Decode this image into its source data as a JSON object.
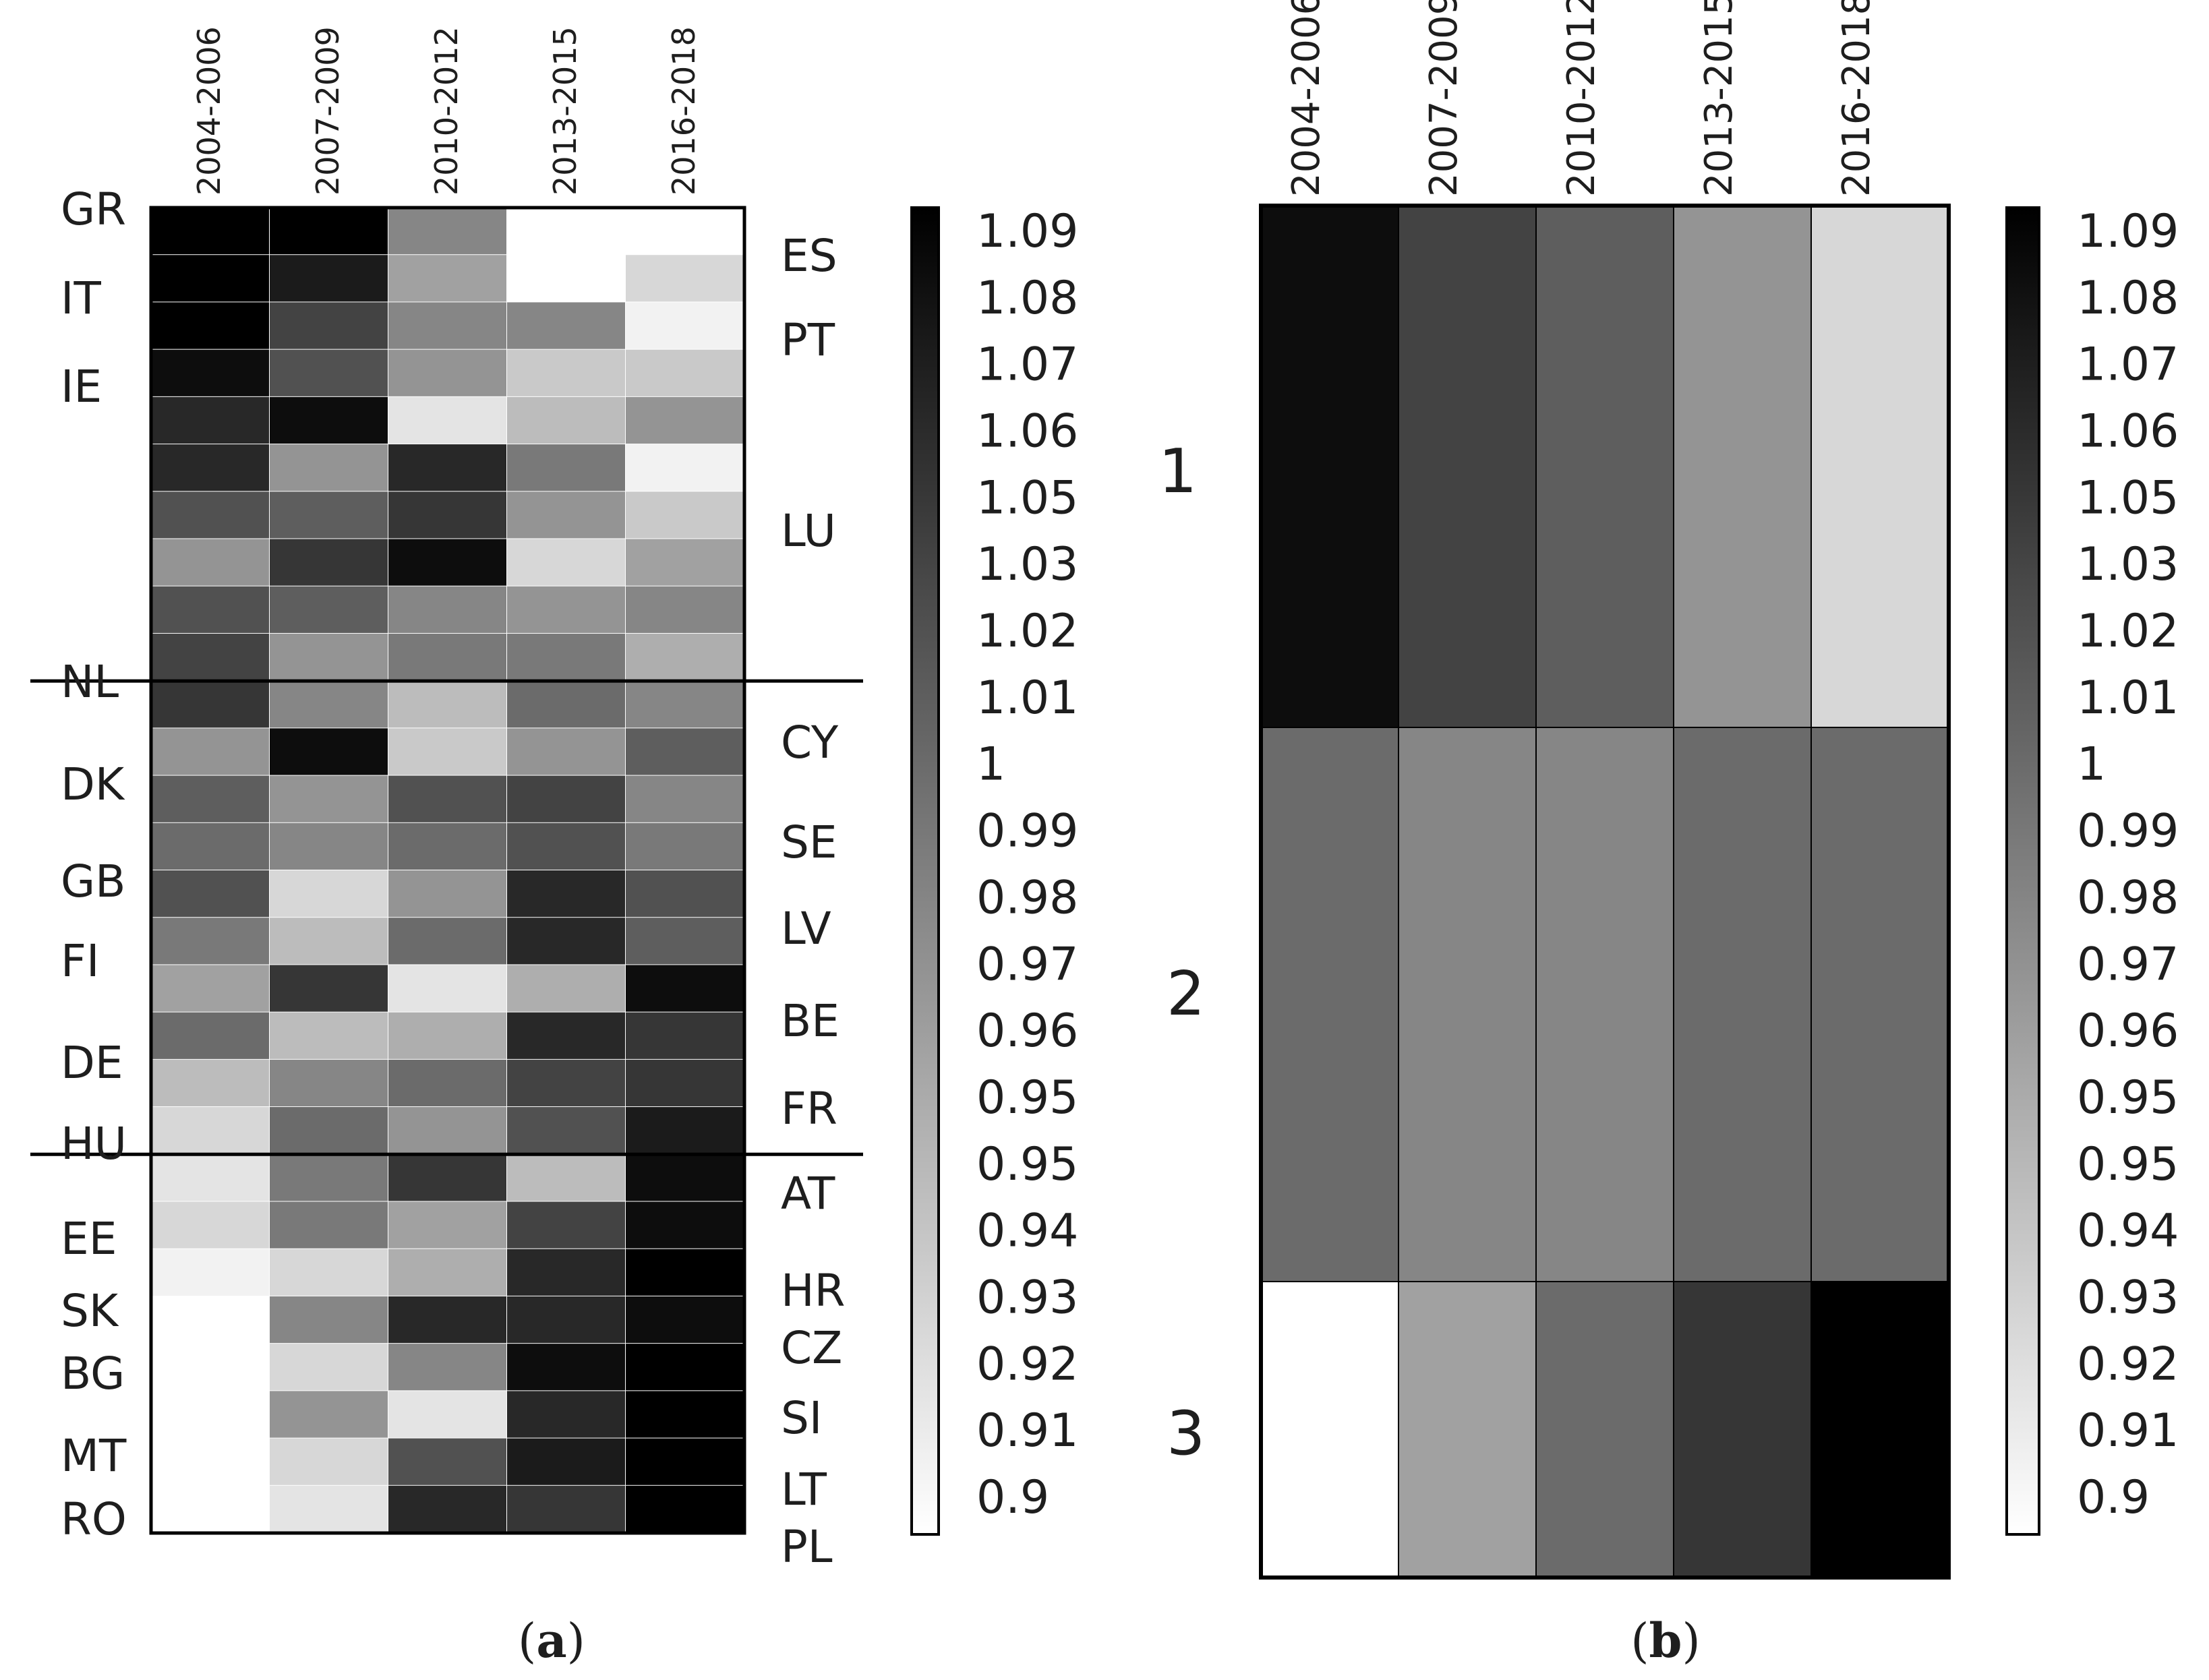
{
  "chart_data": [
    {
      "type": "heatmap",
      "panel": "a",
      "caption_open": "(",
      "caption_letter": "a",
      "caption_close": ")",
      "columns": [
        "2004-2006",
        "2007-2009",
        "2010-2012",
        "2013-2015",
        "2016-2018"
      ],
      "left_labels": [
        "GR",
        "IT",
        "IE",
        "NL",
        "DK",
        "GB",
        "FI",
        "DE",
        "HU",
        "EE",
        "SK",
        "BG",
        "MT",
        "RO"
      ],
      "right_labels": [
        "ES",
        "PT",
        "LU",
        "CY",
        "SE",
        "LV",
        "BE",
        "FR",
        "AT",
        "HR",
        "CZ",
        "SI",
        "LT",
        "PL"
      ],
      "rows": [
        {
          "values": [
            1.09,
            1.09,
            0.99,
            0.9,
            0.9
          ]
        },
        {
          "values": [
            1.09,
            1.07,
            0.97,
            0.9,
            0.93
          ]
        },
        {
          "values": [
            1.09,
            1.04,
            0.99,
            0.99,
            0.91
          ]
        },
        {
          "values": [
            1.08,
            1.03,
            0.98,
            0.94,
            0.94
          ]
        },
        {
          "values": [
            1.06,
            1.08,
            0.92,
            0.95,
            0.98
          ]
        },
        {
          "values": [
            1.06,
            0.98,
            1.06,
            1.0,
            0.91
          ]
        },
        {
          "values": [
            1.03,
            1.02,
            1.05,
            0.98,
            0.94
          ]
        },
        {
          "values": [
            0.98,
            1.05,
            1.08,
            0.93,
            0.97
          ]
        },
        {
          "values": [
            1.03,
            1.02,
            0.99,
            0.98,
            0.99
          ]
        },
        {
          "values": [
            1.04,
            0.98,
            1.0,
            1.0,
            0.96
          ]
        },
        {
          "values": [
            1.05,
            0.99,
            0.95,
            1.01,
            0.99
          ]
        },
        {
          "values": [
            0.98,
            1.08,
            0.94,
            0.98,
            1.02
          ]
        },
        {
          "values": [
            1.02,
            0.98,
            1.03,
            1.04,
            0.99
          ]
        },
        {
          "values": [
            1.01,
            0.99,
            1.01,
            1.03,
            1.0
          ]
        },
        {
          "values": [
            1.03,
            0.93,
            0.98,
            1.06,
            1.03
          ]
        },
        {
          "values": [
            1.0,
            0.95,
            1.01,
            1.06,
            1.02
          ]
        },
        {
          "values": [
            0.97,
            1.05,
            0.92,
            0.96,
            1.08
          ]
        },
        {
          "values": [
            1.01,
            0.95,
            0.96,
            1.06,
            1.05
          ]
        },
        {
          "values": [
            0.95,
            0.99,
            1.01,
            1.04,
            1.05
          ]
        },
        {
          "values": [
            0.93,
            1.01,
            0.98,
            1.03,
            1.07
          ]
        },
        {
          "values": [
            0.92,
            1.0,
            1.05,
            0.95,
            1.08
          ]
        },
        {
          "values": [
            0.93,
            1.0,
            0.97,
            1.04,
            1.08
          ]
        },
        {
          "values": [
            0.91,
            0.93,
            0.96,
            1.06,
            1.09
          ]
        },
        {
          "values": [
            0.9,
            0.99,
            1.06,
            1.06,
            1.08
          ]
        },
        {
          "values": [
            0.9,
            0.93,
            0.99,
            1.08,
            1.09
          ]
        },
        {
          "values": [
            0.9,
            0.98,
            0.92,
            1.06,
            1.09
          ]
        },
        {
          "values": [
            0.9,
            0.93,
            1.03,
            1.07,
            1.09
          ]
        },
        {
          "values": [
            0.9,
            0.92,
            1.06,
            1.05,
            1.09
          ]
        }
      ],
      "group_separators_after_row": [
        10,
        20
      ],
      "colorbar": {
        "min": 0.9,
        "max": 1.09,
        "tick_labels": [
          "1.09",
          "1.08",
          "1.07",
          "1.06",
          "1.05",
          "1.03",
          "1.02",
          "1.01",
          "1",
          "0.99",
          "0.98",
          "0.97",
          "0.96",
          "0.95",
          "0.95",
          "0.94",
          "0.93",
          "0.92",
          "0.91",
          "0.9"
        ]
      }
    },
    {
      "type": "heatmap",
      "panel": "b",
      "caption_open": "(",
      "caption_letter": "b",
      "caption_close": ")",
      "columns": [
        "2004-2006",
        "2007-2009",
        "2010-2012",
        "2013-2015",
        "2016-2018"
      ],
      "group_labels": [
        "1",
        "2",
        "3"
      ],
      "groups": [
        {
          "label": "1",
          "values": [
            1.08,
            1.04,
            1.02,
            0.98,
            0.93
          ]
        },
        {
          "label": "2",
          "values": [
            1.01,
            0.99,
            0.99,
            1.01,
            1.01
          ]
        },
        {
          "label": "3",
          "values": [
            0.9,
            0.97,
            1.01,
            1.05,
            1.09
          ]
        }
      ],
      "colorbar": {
        "min": 0.9,
        "max": 1.09,
        "tick_labels": [
          "1.09",
          "1.08",
          "1.07",
          "1.06",
          "1.05",
          "1.03",
          "1.02",
          "1.01",
          "1",
          "0.99",
          "0.98",
          "0.97",
          "0.96",
          "0.95",
          "0.95",
          "0.94",
          "0.93",
          "0.92",
          "0.91",
          "0.9"
        ]
      }
    }
  ]
}
